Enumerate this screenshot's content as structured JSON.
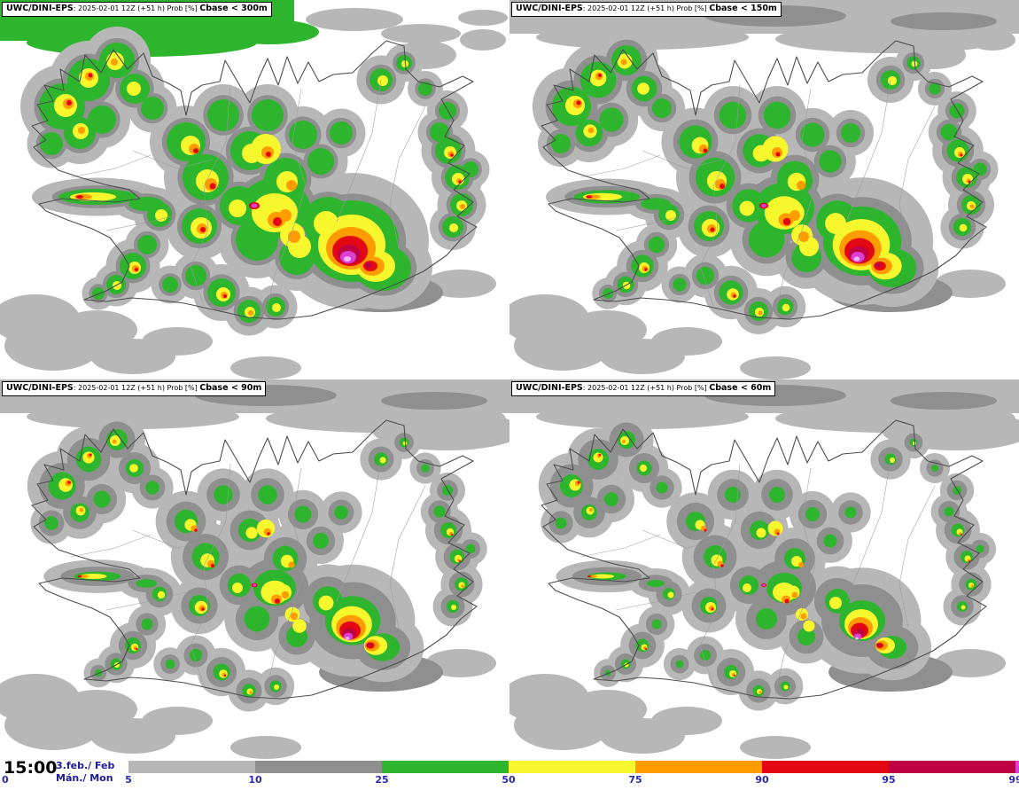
{
  "model": "UWC/DINI-EPS",
  "title_meta": ": 2025-02-01 12Z (+51 h) Prob [%] ",
  "panels": [
    {
      "threshold": "Cbase < 300m"
    },
    {
      "threshold": "Cbase < 150m"
    },
    {
      "threshold": "Cbase < 90m"
    },
    {
      "threshold": "Cbase < 60m"
    }
  ],
  "footer": {
    "time": "15:00",
    "date": "3.feb./ Feb",
    "day": "Mán./ Mon"
  },
  "legend": {
    "values": [
      "0",
      "5",
      "10",
      "25",
      "50",
      "75",
      "90",
      "95",
      "99"
    ],
    "colors": [
      "#b7b7b7",
      "#8f8f8f",
      "#2eb52e",
      "#f7f72e",
      "#ff9d00",
      "#e30613",
      "#c00045",
      "#dd3fd0"
    ],
    "core_color": "#f0b3ff"
  }
}
